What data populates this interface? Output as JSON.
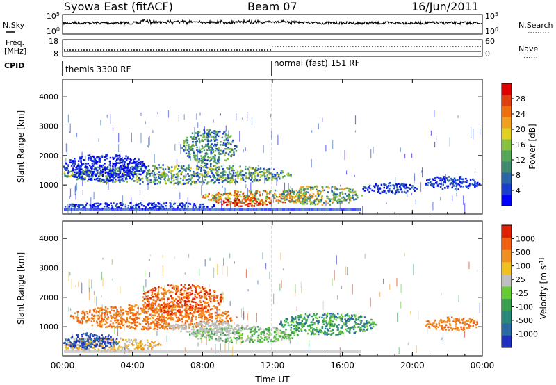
{
  "header": {
    "station": "Syowa East (fitACF)",
    "beam": "Beam 07",
    "date": "16/Jun/2011"
  },
  "top_panels": {
    "nsky_label": "N.Sky",
    "nsky_ticks": [
      "10^5",
      "10^0"
    ],
    "nsearch_label": "N.Search",
    "nsearch_ticks": [
      "10^5",
      "10^0"
    ],
    "freq_label": "Freq.",
    "freq_unit": "[MHz]",
    "freq_ticks": [
      "18",
      "8"
    ],
    "nave_label": "Nave",
    "nave_ticks": [
      "60",
      "0"
    ],
    "cpid_label": "CPID",
    "cpid_segments": [
      "themis 3300 RF",
      "normal (fast) 151 RF"
    ]
  },
  "chart_data": [
    {
      "type": "heatmap",
      "name": "power",
      "ylabel": "Slant Range [km]",
      "x_ticks": [
        "00:00",
        "04:00",
        "08:00",
        "12:00",
        "16:00",
        "20:00",
        "00:00"
      ],
      "y_ticks": [
        "1000",
        "2000",
        "3000",
        "4000"
      ],
      "colorbar_label": "Power [dB]",
      "colorbar_ticks": [
        "28",
        "24",
        "20",
        "16",
        "12",
        "8",
        "4"
      ],
      "colors": [
        "#0000ff",
        "#1a3fd0",
        "#2a65a8",
        "#3f8a70",
        "#55a85a",
        "#88c040",
        "#e0d020",
        "#f0a020",
        "#f07010",
        "#e04010",
        "#e00000"
      ]
    },
    {
      "type": "heatmap",
      "name": "velocity",
      "ylabel": "Slant Range [km]",
      "xlabel": "Time UT",
      "x_ticks": [
        "00:00",
        "04:00",
        "08:00",
        "12:00",
        "16:00",
        "20:00",
        "00:00"
      ],
      "y_ticks": [
        "1000",
        "2000",
        "3000",
        "4000"
      ],
      "colorbar_label": "Velocity [m s^-1]",
      "colorbar_ticks": [
        "1000",
        "500",
        "100",
        "25",
        "-25",
        "-100",
        "-500",
        "-1000"
      ],
      "colors": [
        "#2030c0",
        "#2a6aa0",
        "#2a8a7a",
        "#3aa050",
        "#66cc33",
        "#bfbfbf",
        "#f0c020",
        "#f09020",
        "#f06010",
        "#e02000"
      ]
    }
  ]
}
